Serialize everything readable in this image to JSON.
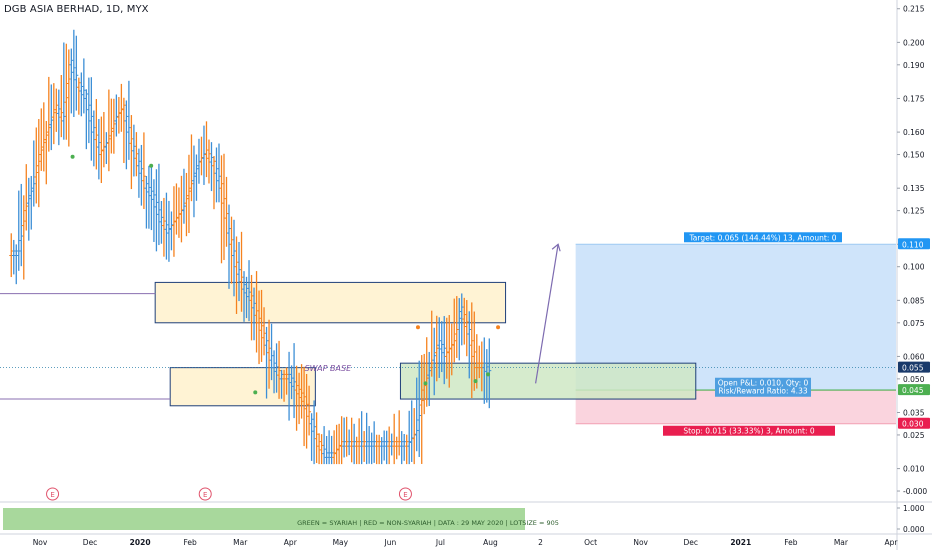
{
  "header": {
    "title": "DGB ASIA BERHAD, 1D, MYX"
  },
  "colors": {
    "up": "#3d8fd6",
    "down": "#f5821f",
    "target_zone": "#cfe4fa",
    "stop_zone": "#fad4de",
    "supply_box": "#fff1cc",
    "demand_box": "#cfe8c4",
    "box_border": "#1f3f7a",
    "target_tag": "#2196f3",
    "stop_tag": "#e91e4f",
    "current_tag": "#1a3a6b",
    "entry_tag": "#4caf50",
    "footer_bg": "#a8d89c"
  },
  "annotations": {
    "target": "Target: 0.065 (144.44%) 13, Amount: 0",
    "stop": "Stop: 0.015 (33.33%) 3, Amount: 0",
    "pnl_line1": "Open P&L: 0.010, Qty: 0",
    "pnl_line2": "Risk/Reward Ratio: 4.33",
    "swap_base": "SWAP BASE",
    "footer": "GREEN = SYARIAH  |  RED = NON-SYARIAH  |  DATA : 29 MAY 2020  |  LOTSIZE = 905",
    "earnings_marker": "E"
  },
  "price_tags": {
    "target": "0.110",
    "current": "0.055",
    "entry": "0.045",
    "stop": "0.030"
  },
  "chart_data": {
    "type": "ohlc",
    "title": "DGB ASIA BERHAD, 1D, MYX",
    "y_ticks": [
      "0.215",
      "0.200",
      "0.190",
      "0.175",
      "0.160",
      "0.150",
      "0.135",
      "0.125",
      "0.110",
      "0.100",
      "0.085",
      "0.075",
      "0.060",
      "0.050",
      "0.035",
      "0.025",
      "0.010",
      "-0.000"
    ],
    "y_tick_values": [
      0.215,
      0.2,
      0.19,
      0.175,
      0.16,
      0.15,
      0.135,
      0.125,
      0.11,
      0.1,
      0.085,
      0.075,
      0.06,
      0.05,
      0.035,
      0.025,
      0.01,
      -0.0
    ],
    "sub_ticks": [
      "1.000",
      "0.000"
    ],
    "ylim": [
      -0.004,
      0.218
    ],
    "x_ticks": [
      "Nov",
      "Dec",
      "2020",
      "Feb",
      "Mar",
      "Apr",
      "May",
      "Jun",
      "Jul",
      "Aug",
      "2",
      "Oct",
      "Nov",
      "Dec",
      "2021",
      "Feb",
      "Mar",
      "Apr"
    ],
    "x_bold": [
      "2020",
      "2021"
    ],
    "xlim_months": [
      -0.2,
      17.7
    ],
    "x_tick_months": [
      0,
      1,
      2,
      3,
      4,
      5,
      6,
      7,
      8,
      9,
      10,
      11,
      12,
      13,
      14,
      15,
      16,
      17
    ],
    "approx_closes": [
      0.105,
      0.125,
      0.135,
      0.15,
      0.16,
      0.17,
      0.165,
      0.19,
      0.18,
      0.175,
      0.16,
      0.15,
      0.155,
      0.165,
      0.17,
      0.155,
      0.145,
      0.135,
      0.13,
      0.12,
      0.115,
      0.12,
      0.125,
      0.135,
      0.145,
      0.15,
      0.145,
      0.135,
      0.115,
      0.1,
      0.09,
      0.085,
      0.075,
      0.065,
      0.055,
      0.05,
      0.05,
      0.045,
      0.04,
      0.03,
      0.02,
      0.015,
      0.015,
      0.02,
      0.02,
      0.02,
      0.02,
      0.02,
      0.02,
      0.02,
      0.02,
      0.02,
      0.02,
      0.025,
      0.045,
      0.055,
      0.065,
      0.06,
      0.065,
      0.08,
      0.07,
      0.055,
      0.055,
      0.05
    ],
    "first_month": 0,
    "last_month": 9.6,
    "supply_zone": {
      "from_month": 2.9,
      "to_month": 9.9,
      "low": 0.075,
      "high": 0.093
    },
    "demand_zone_left": {
      "from_month": 3.2,
      "to_month": 6.1,
      "low": 0.038,
      "high": 0.055
    },
    "demand_zone_right": {
      "from_month": 7.8,
      "to_month": 13.7,
      "low": 0.041,
      "high": 0.057
    },
    "purple_line_upper": {
      "price": 0.088,
      "to_month": 2.9
    },
    "purple_line_lower": {
      "price": 0.041,
      "to_month": 3.2
    },
    "position": {
      "from_month": 11.3,
      "to_month": 17.7,
      "entry": 0.045,
      "target": 0.11,
      "stop": 0.03
    },
    "current_price": 0.055,
    "projection": {
      "from_month": 10.5,
      "from_price": 0.048,
      "to_month": 10.95,
      "to_price": 0.11
    },
    "earnings_months": [
      0.85,
      3.9,
      7.9
    ],
    "subpane_range": [
      0,
      1
    ]
  }
}
